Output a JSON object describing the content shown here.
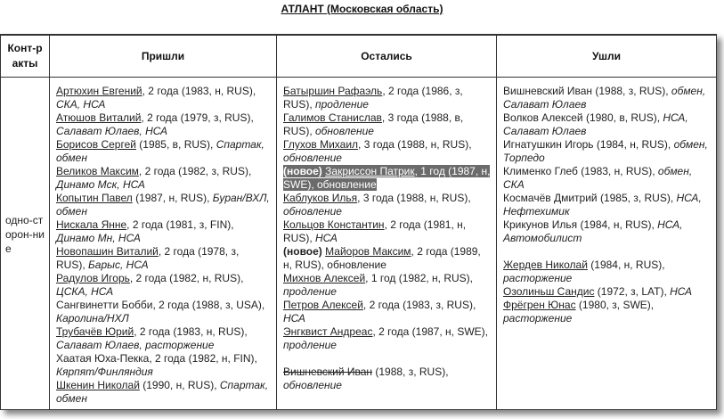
{
  "title": "АТЛАНТ (Московская область)",
  "headers": {
    "contracts": "Конт-ракты",
    "came": "Пришли",
    "stayed": "Остались",
    "left": "Ушли"
  },
  "row_label": "одно-сторон-ние",
  "highlight_color": "#6b6b6b",
  "came": [
    {
      "name": "Артюхин Евгений",
      "linked": true,
      "plain": ", 2 года (1983, н, RUS), ",
      "italic": "СКА, НСА"
    },
    {
      "name": "Атюшов Виталий",
      "linked": true,
      "plain": ", 2 года (1979, з, RUS), ",
      "italic": "Салават Юлаев, НСА"
    },
    {
      "name": "Борисов Сергей",
      "linked": true,
      "plain": " (1985, в, RUS), ",
      "italic": "Спартак, обмен"
    },
    {
      "name": "Великов Максим",
      "linked": true,
      "plain": ", 2 года (1982, з, RUS), ",
      "italic": "Динамо Мск, НСА"
    },
    {
      "name": "Копытин Павел",
      "linked": true,
      "plain": " (1987, н, RUS), ",
      "italic": "Буран/ВХЛ, обмен"
    },
    {
      "name": "Нискала Янне",
      "linked": true,
      "plain": ", 2 года (1981, з, FIN), ",
      "italic": "Динамо Мн, НСА"
    },
    {
      "name": "Новопашин Виталий",
      "linked": true,
      "plain": ", 2 года (1978, з, RUS), ",
      "italic": "Барыс, НСА"
    },
    {
      "name": "Радулов Игорь",
      "linked": true,
      "plain": ", 2 года (1982, н, RUS), ",
      "italic": "ЦСКА, НСА"
    },
    {
      "name": "Сангвинетти Бобби",
      "linked": false,
      "plain": ", 2 года (1988, з, USA), ",
      "italic": "Каролина/НХЛ"
    },
    {
      "name": "Трубачёв Юрий",
      "linked": true,
      "plain": ", 2 года (1983, н, RUS), ",
      "italic": "Салават Юлаев, расторжение"
    },
    {
      "name": "Хаатая Юха-Пекка",
      "linked": false,
      "plain": ", 2 года (1982, н, FIN), ",
      "italic": "Кярпят/Финляндия"
    },
    {
      "name": "Шкенин Николай",
      "linked": true,
      "plain": " (1990, н, RUS), ",
      "italic": "Спартак, обмен"
    }
  ],
  "stayed": [
    {
      "name": "Батыршин Рафаэль",
      "linked": true,
      "plain": ", 2 года (1986, з, RUS), ",
      "italic": "продление"
    },
    {
      "name": "Галимов Станислав",
      "linked": true,
      "plain": ", 3 года (1988, в, RUS), ",
      "italic": "обновление"
    },
    {
      "lead": " ",
      "name": "Глухов Михаил",
      "linked": true,
      "plain": ", 3 года (1988, н, RUS), ",
      "italic": "обновление"
    },
    {
      "prefix": "(новое)",
      "name": "Закриссон Патрик",
      "linked": true,
      "plain": ", 1 год (1987, н, SWE), обновление",
      "highlight": true
    },
    {
      "lead": " ",
      "name": "Каблуков Илья",
      "linked": true,
      "plain": ", 3 года (1988, н, RUS), ",
      "italic": "обновление"
    },
    {
      "name": "Кольцов Константин",
      "linked": true,
      "plain": ", 2 года (1981, н, RUS), ",
      "italic": "НСА"
    },
    {
      "prefix": "(новое)",
      "name": "Майоров Максим",
      "linked": true,
      "plain": ", 2 года (1989, н, RUS), обновление"
    },
    {
      "name": "Михнов Алексей",
      "linked": true,
      "plain": ", 1 год (1982, н, RUS), ",
      "italic": "продление"
    },
    {
      "name": "Петров Алексей",
      "linked": true,
      "plain": ", 2 года (1983, з, RUS), ",
      "italic": "НСА"
    },
    {
      "name": "Энгквист Андреас",
      "linked": true,
      "plain": ", 2 года (1987, н, SWE), ",
      "italic": "продление"
    },
    {
      "spacer": true
    },
    {
      "name": "Вишневский Иван",
      "linked": true,
      "strike": true,
      "plain": " (1988, з, RUS), ",
      "italic": "обновление"
    }
  ],
  "left": [
    {
      "name": "Вишневский Иван",
      "linked": false,
      "plain": " (1988, з, RUS), ",
      "italic": "обмен, Салават Юлаев"
    },
    {
      "name": "Волков Алексей",
      "linked": false,
      "plain": " (1980, в, RUS), ",
      "italic": "НСА, Салават Юлаев"
    },
    {
      "name": "Игнатушкин Игорь",
      "linked": false,
      "plain": " (1984, н, RUS), ",
      "italic": "обмен, Торпедо"
    },
    {
      "name": "Клименко Глеб",
      "linked": false,
      "plain": " (1983, н, RUS), ",
      "italic": "обмен, СКА"
    },
    {
      "name": "Космачёв Дмитрий",
      "linked": false,
      "plain": " (1985, з, RUS), ",
      "italic": "НСА, Нефтехимик"
    },
    {
      "name": "Крикунов Илья",
      "linked": false,
      "plain": " (1984, н, RUS), ",
      "italic": "НСА, Автомобилист"
    },
    {
      "spacer": true
    },
    {
      "name": "Жердев Николай",
      "linked": true,
      "plain": " (1984, н, RUS), ",
      "italic": "расторжение"
    },
    {
      "name": "Озолиньш Сандис",
      "linked": true,
      "plain": " (1972, з, LAT), ",
      "italic": "НСА"
    },
    {
      "name": "Фрёгрен Юнас",
      "linked": true,
      "plain": " (1980, з, SWE), ",
      "italic": "расторжение"
    }
  ]
}
